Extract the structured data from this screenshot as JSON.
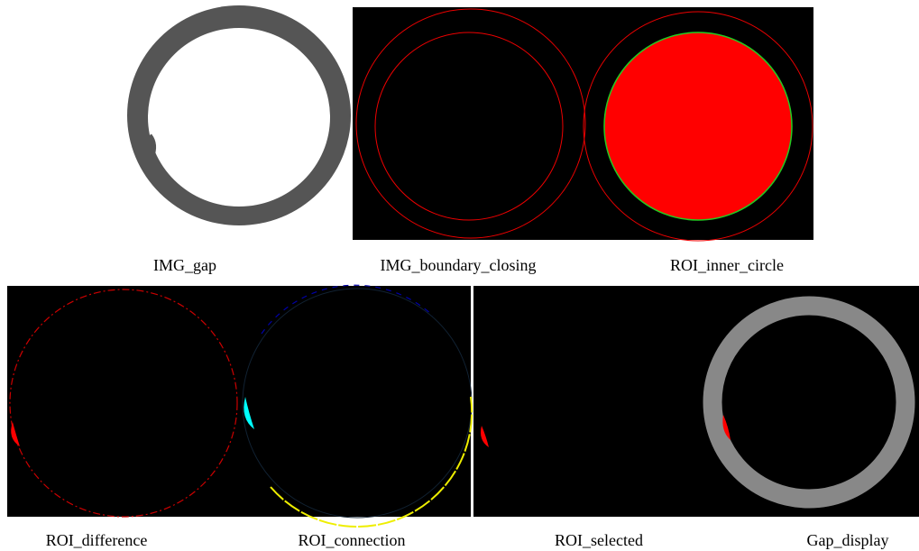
{
  "figure": {
    "captions": [
      "IMG_gap",
      "IMG_boundary_closing",
      "ROI_inner_circle",
      "ROI_difference",
      "ROI_connection",
      "ROI_selected",
      "Gap_display"
    ]
  }
}
